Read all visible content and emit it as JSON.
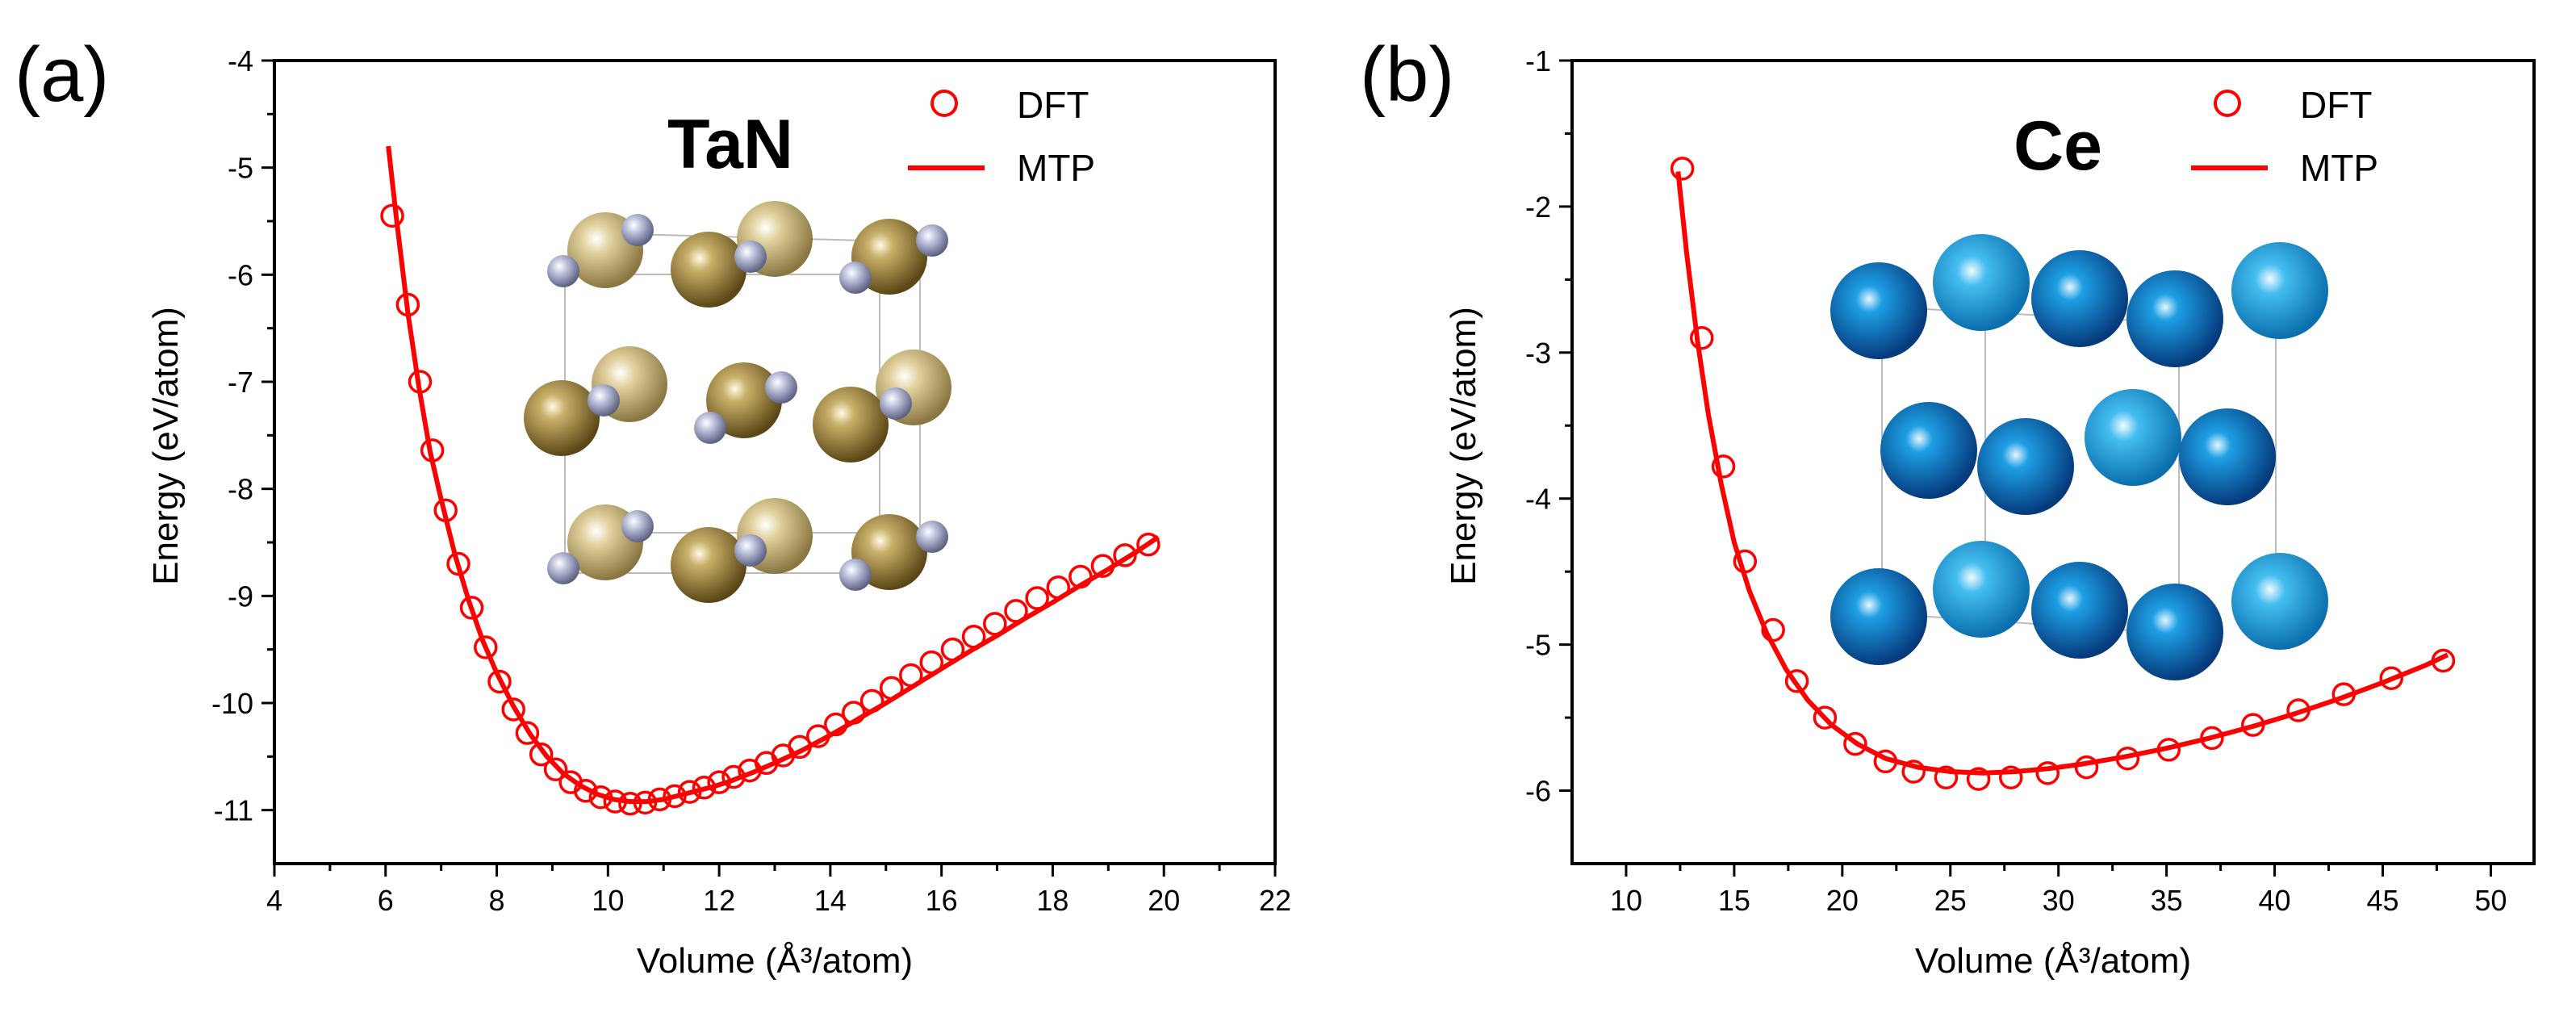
{
  "chart_data": [
    {
      "panel_label": "(a)",
      "type": "scatter",
      "material": "TaN",
      "xlabel": "Volume (Å³/atom)",
      "ylabel": "Energy (eV/atom)",
      "xlim": [
        4,
        22
      ],
      "ylim": [
        -11.5,
        -4
      ],
      "xticks": [
        4,
        6,
        8,
        10,
        12,
        14,
        16,
        18,
        20,
        22
      ],
      "yticks": [
        -4,
        -5,
        -6,
        -7,
        -8,
        -9,
        -10,
        -11
      ],
      "xticklabels": [
        "4",
        "6",
        "8",
        "10",
        "12",
        "14",
        "16",
        "18",
        "20",
        "22"
      ],
      "yticklabels": [
        "-4",
        "-5",
        "-6",
        "-7",
        "-8",
        "-9",
        "-10",
        "-11"
      ],
      "legend": {
        "position": "top-right",
        "entries": [
          "DFT",
          "MTP"
        ]
      },
      "series": [
        {
          "name": "DFT",
          "marker": "open-circle",
          "color": "#ff0000",
          "x": [
            6.12,
            6.4,
            6.62,
            6.84,
            7.08,
            7.31,
            7.55,
            7.8,
            8.05,
            8.3,
            8.55,
            8.8,
            9.06,
            9.33,
            9.6,
            9.87,
            10.13,
            10.4,
            10.67,
            10.93,
            11.2,
            11.47,
            11.73,
            12.0,
            12.26,
            12.55,
            12.85,
            13.15,
            13.45,
            13.78,
            14.1,
            14.42,
            14.75,
            15.1,
            15.45,
            15.82,
            16.2,
            16.58,
            16.96,
            17.34,
            17.72,
            18.1,
            18.5,
            18.9,
            19.3,
            19.72
          ],
          "y": [
            -5.45,
            -6.28,
            -7.0,
            -7.64,
            -8.2,
            -8.7,
            -9.11,
            -9.48,
            -9.8,
            -10.06,
            -10.28,
            -10.48,
            -10.62,
            -10.74,
            -10.82,
            -10.88,
            -10.92,
            -10.94,
            -10.93,
            -10.9,
            -10.87,
            -10.83,
            -10.79,
            -10.74,
            -10.69,
            -10.63,
            -10.56,
            -10.49,
            -10.41,
            -10.31,
            -10.2,
            -10.09,
            -9.98,
            -9.86,
            -9.74,
            -9.62,
            -9.5,
            -9.38,
            -9.26,
            -9.14,
            -9.02,
            -8.92,
            -8.82,
            -8.72,
            -8.62,
            -8.52
          ]
        },
        {
          "name": "MTP",
          "marker": "line",
          "color": "#ff0000",
          "x": [
            6.05,
            6.2,
            6.4,
            6.6,
            6.8,
            7.0,
            7.25,
            7.5,
            7.75,
            8.0,
            8.3,
            8.6,
            8.9,
            9.2,
            9.5,
            9.8,
            10.1,
            10.4,
            10.7,
            11.0,
            11.3,
            11.6,
            11.9,
            12.2,
            12.6,
            13.0,
            13.5,
            14.0,
            14.5,
            15.0,
            15.5,
            16.0,
            16.5,
            17.0,
            17.5,
            18.0,
            18.5,
            19.0,
            19.5,
            19.9
          ],
          "y": [
            -4.8,
            -5.5,
            -6.35,
            -7.05,
            -7.65,
            -8.1,
            -8.62,
            -9.05,
            -9.42,
            -9.72,
            -10.03,
            -10.29,
            -10.5,
            -10.66,
            -10.77,
            -10.85,
            -10.9,
            -10.92,
            -10.92,
            -10.9,
            -10.86,
            -10.82,
            -10.78,
            -10.73,
            -10.65,
            -10.56,
            -10.44,
            -10.3,
            -10.15,
            -10.0,
            -9.84,
            -9.68,
            -9.52,
            -9.37,
            -9.21,
            -9.06,
            -8.9,
            -8.75,
            -8.59,
            -8.45
          ]
        }
      ]
    },
    {
      "panel_label": "(b)",
      "type": "scatter",
      "material": "Ce",
      "xlabel": "Volume (Å³/atom)",
      "ylabel": "Energy (eV/atom)",
      "xlim": [
        7.5,
        52
      ],
      "ylim": [
        -6.5,
        -1
      ],
      "xticks": [
        10,
        15,
        20,
        25,
        30,
        35,
        40,
        45,
        50
      ],
      "yticks": [
        -1,
        -2,
        -3,
        -4,
        -5,
        -6
      ],
      "xticklabels": [
        "10",
        "15",
        "20",
        "25",
        "30",
        "35",
        "40",
        "45",
        "50"
      ],
      "yticklabels": [
        "-1",
        "-2",
        "-3",
        "-4",
        "-5",
        "-6"
      ],
      "legend": {
        "position": "top-right",
        "entries": [
          "DFT",
          "MTP"
        ]
      },
      "series": [
        {
          "name": "DFT",
          "marker": "open-circle",
          "color": "#ff0000",
          "x": [
            12.6,
            13.5,
            14.5,
            15.5,
            16.8,
            17.9,
            19.2,
            20.6,
            22.0,
            23.3,
            24.8,
            26.3,
            27.8,
            29.5,
            31.3,
            33.2,
            35.1,
            37.1,
            39.0,
            41.1,
            43.2,
            45.4,
            47.8
          ],
          "y": [
            -1.74,
            -2.9,
            -3.78,
            -4.43,
            -4.9,
            -5.25,
            -5.5,
            -5.68,
            -5.8,
            -5.87,
            -5.91,
            -5.92,
            -5.91,
            -5.88,
            -5.84,
            -5.78,
            -5.72,
            -5.64,
            -5.55,
            -5.45,
            -5.34,
            -5.23,
            -5.11
          ]
        },
        {
          "name": "MTP",
          "marker": "line",
          "color": "#ff0000",
          "x": [
            12.4,
            12.8,
            13.3,
            13.8,
            14.4,
            15.0,
            15.7,
            16.5,
            17.4,
            18.4,
            19.5,
            20.7,
            22.0,
            23.5,
            25.0,
            26.5,
            28.0,
            29.5,
            31.0,
            33.0,
            35.0,
            37.0,
            39.0,
            41.0,
            43.0,
            45.0,
            47.0,
            48.0
          ],
          "y": [
            -1.76,
            -2.32,
            -2.92,
            -3.42,
            -3.9,
            -4.3,
            -4.63,
            -4.92,
            -5.17,
            -5.38,
            -5.55,
            -5.68,
            -5.78,
            -5.84,
            -5.87,
            -5.88,
            -5.87,
            -5.85,
            -5.82,
            -5.77,
            -5.71,
            -5.64,
            -5.56,
            -5.47,
            -5.37,
            -5.26,
            -5.14,
            -5.07
          ]
        }
      ]
    }
  ]
}
